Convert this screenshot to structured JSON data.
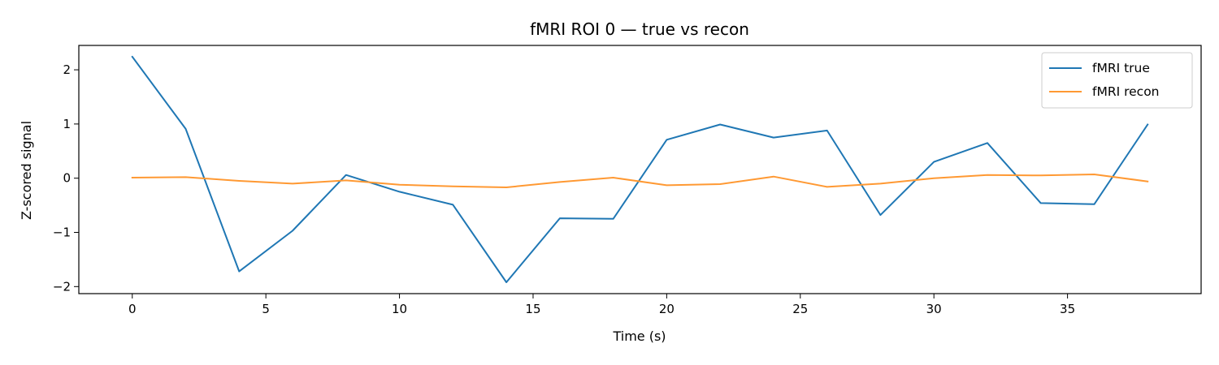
{
  "chart_data": {
    "type": "line",
    "title": "fMRI ROI 0 — true vs recon",
    "xlabel": "Time (s)",
    "ylabel": "Z-scored signal",
    "xlim": [
      -2,
      40
    ],
    "ylim": [
      -2.13,
      2.45
    ],
    "xticks": [
      0,
      5,
      10,
      15,
      20,
      25,
      30,
      35
    ],
    "yticks": [
      -2,
      -1,
      0,
      1,
      2
    ],
    "xtick_labels": [
      "0",
      "5",
      "10",
      "15",
      "20",
      "25",
      "30",
      "35"
    ],
    "ytick_labels": [
      "−2",
      "−1",
      "0",
      "1",
      "2"
    ],
    "grid": false,
    "legend_position": "upper right",
    "x": [
      0,
      2,
      4,
      6,
      8,
      10,
      12,
      14,
      16,
      18,
      20,
      22,
      24,
      26,
      28,
      30,
      32,
      34,
      36,
      38
    ],
    "series": [
      {
        "name": "fMRI true",
        "color": "#1f77b4",
        "values": [
          2.24,
          0.91,
          -1.72,
          -0.97,
          0.06,
          -0.25,
          -0.49,
          -1.92,
          -0.74,
          -0.75,
          0.71,
          0.99,
          0.75,
          0.88,
          -0.68,
          0.3,
          0.65,
          -0.46,
          -0.48,
          0.99
        ]
      },
      {
        "name": "fMRI recon",
        "color": "#ff9933",
        "values": [
          0.01,
          0.02,
          -0.05,
          -0.1,
          -0.04,
          -0.12,
          -0.15,
          -0.17,
          -0.07,
          0.01,
          -0.13,
          -0.11,
          0.03,
          -0.16,
          -0.1,
          0.0,
          0.06,
          0.05,
          0.07,
          -0.06
        ]
      }
    ]
  }
}
